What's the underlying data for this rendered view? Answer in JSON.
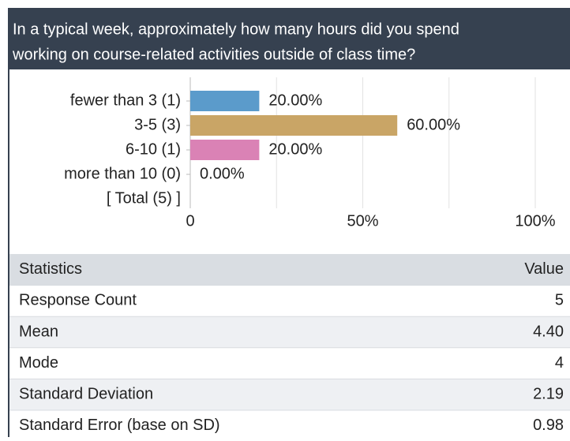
{
  "header": {
    "title_lines": [
      "In a typical week, approximately how many hours did you spend",
      "working on course-related activities outside of class time?"
    ]
  },
  "chart_data": {
    "type": "bar",
    "orientation": "horizontal",
    "categories": [
      "fewer than 3 (1)",
      "3-5 (3)",
      "6-10 (1)",
      "more than 10 (0)"
    ],
    "total_label": "[ Total (5) ]",
    "values": [
      20,
      60,
      20,
      0
    ],
    "value_labels": [
      "20.00%",
      "60.00%",
      "20.00%",
      "0.00%"
    ],
    "colors": [
      "#5b9bcb",
      "#c9a566",
      "#da82b5",
      "#999999"
    ],
    "xlim": [
      0,
      100
    ],
    "xticks": [
      0,
      {
        "value": 50,
        "label": "50%"
      },
      {
        "value": 100,
        "label": "100%"
      }
    ],
    "xminor_ticks": [
      25,
      75
    ],
    "grid": true
  },
  "table": {
    "header": [
      "Statistics",
      "Value"
    ],
    "rows": [
      [
        "Response Count",
        "5"
      ],
      [
        "Mean",
        "4.40"
      ],
      [
        "Mode",
        "4"
      ],
      [
        "Standard Deviation",
        "2.19"
      ],
      [
        "Standard Error (base on SD)",
        "0.98"
      ]
    ]
  }
}
